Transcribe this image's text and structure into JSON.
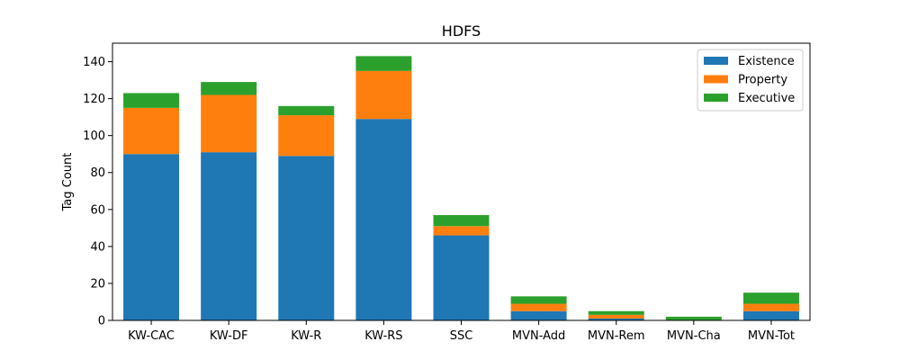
{
  "chart_data": {
    "type": "bar",
    "stacked": true,
    "title": "HDFS",
    "xlabel": "",
    "ylabel": "Tag Count",
    "ylim": [
      0,
      150
    ],
    "yticks": [
      0,
      20,
      40,
      60,
      80,
      100,
      120,
      140
    ],
    "categories": [
      "KW-CAC",
      "KW-DF",
      "KW-R",
      "KW-RS",
      "SSC",
      "MVN-Add",
      "MVN-Rem",
      "MVN-Cha",
      "MVN-Tot"
    ],
    "series": [
      {
        "name": "Existence",
        "color": "#1f77b4",
        "values": [
          90,
          91,
          89,
          109,
          46,
          5,
          1,
          0,
          5
        ]
      },
      {
        "name": "Property",
        "color": "#ff7f0e",
        "values": [
          25,
          31,
          22,
          26,
          5,
          4,
          2,
          0,
          4
        ]
      },
      {
        "name": "Executive",
        "color": "#2ca02c",
        "values": [
          8,
          7,
          5,
          8,
          6,
          4,
          2,
          2,
          6
        ]
      }
    ],
    "grid": false,
    "legend": "top-right"
  }
}
